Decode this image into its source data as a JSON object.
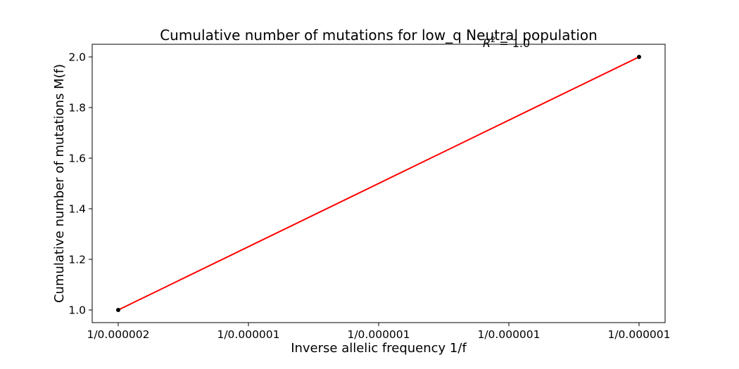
{
  "chart_data": {
    "type": "scatter",
    "title": "Cumulative number of mutations for low_q Neutral population",
    "xlabel": "Inverse allelic frequency 1/f",
    "ylabel": "Cumulative number of mutations M(f)",
    "annotation": {
      "symbol": "R",
      "exponent": "2",
      "text": " =  1.0"
    },
    "x_tick_labels": [
      "1/0.000002",
      "1/0.000001",
      "1/0.000001",
      "1/0.000001",
      "1/0.000001"
    ],
    "x_range": [
      0,
      1
    ],
    "x_ticks": [
      0,
      0.25,
      0.5,
      0.75,
      1
    ],
    "y_range": [
      0.95,
      2.05
    ],
    "y_ticks": [
      1.0,
      1.2,
      1.4,
      1.6,
      1.8,
      2.0
    ],
    "y_tick_labels": [
      "1.0",
      "1.2",
      "1.4",
      "1.6",
      "1.8",
      "2.0"
    ],
    "grid": false,
    "points": [
      {
        "x": 0,
        "y": 1.0
      },
      {
        "x": 1,
        "y": 2.0
      }
    ],
    "fit_line": [
      {
        "x": 0,
        "y": 1.0
      },
      {
        "x": 1,
        "y": 2.0
      }
    ],
    "colors": {
      "points": "#000000",
      "fit_line": "#ff0000"
    }
  }
}
